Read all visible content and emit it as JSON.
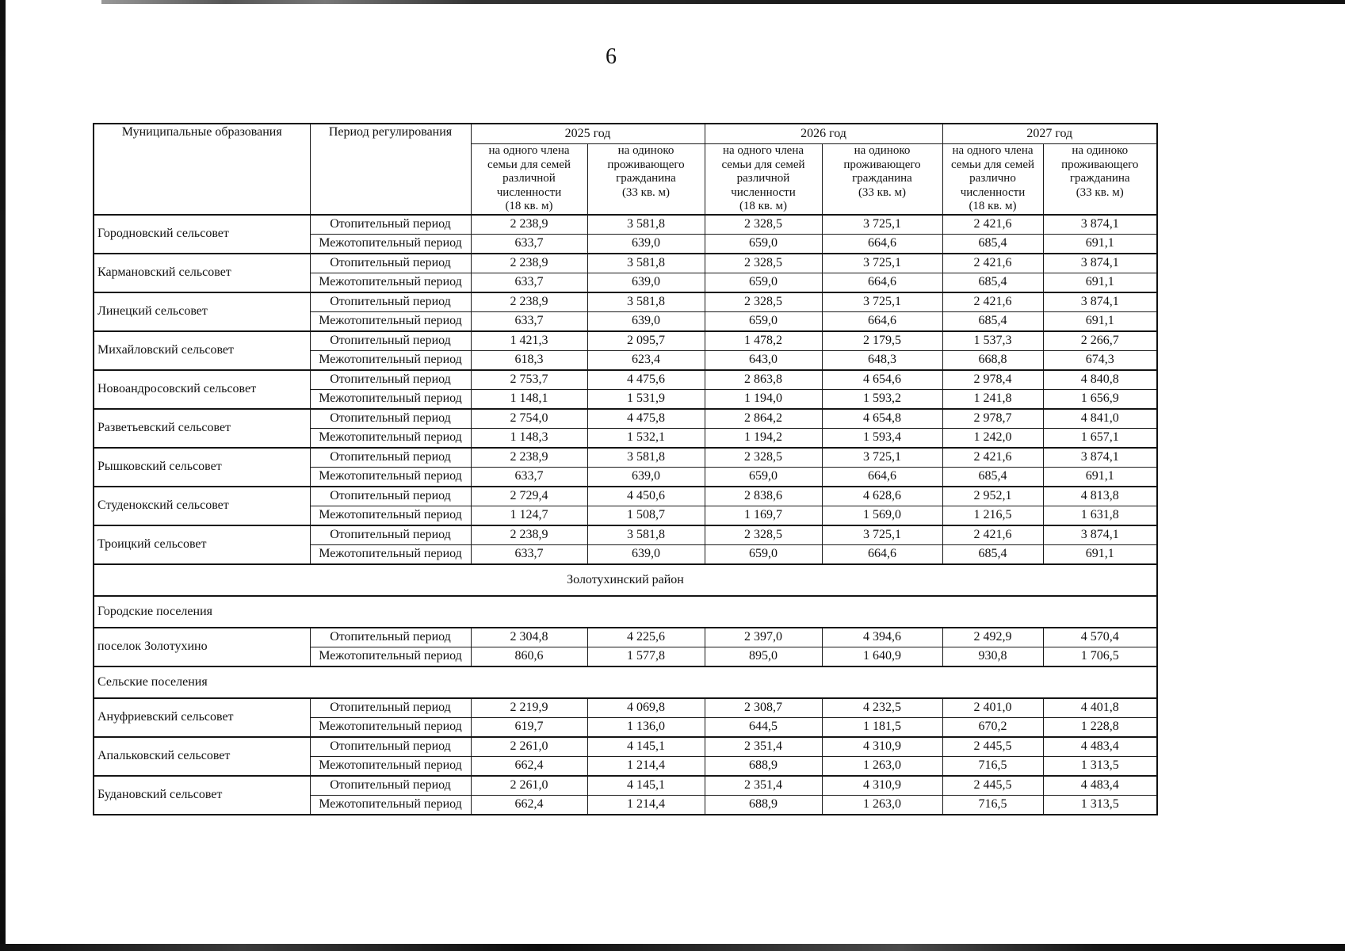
{
  "page": {
    "number": "6"
  },
  "table": {
    "headers": {
      "municipality": "Муниципальные образования",
      "period": "Период регулирования"
    },
    "years": [
      {
        "label": "2025 год",
        "sub_member": "на одного члена\nсемьи для семей\nразличной\nчисленности\n(18 кв. м)",
        "sub_single": "на одиноко\nпроживающего\nгражданина\n(33 кв. м)"
      },
      {
        "label": "2026 год",
        "sub_member": "на одного члена\nсемьи для семей\nразличной\nчисленности\n(18 кв. м)",
        "sub_single": "на одиноко\nпроживающего\nгражданина\n(33 кв. м)"
      },
      {
        "label": "2027 год",
        "sub_member": "на одного члена\nсемьи для семей\nразлично\nчисленности\n(18 кв. м)",
        "sub_single": "на одиноко\nпроживающего\nгражданина\n(33 кв. м)"
      }
    ],
    "period_labels": {
      "heating": "Отопительный период",
      "interheating": "Межотопительный период"
    },
    "rows": [
      {
        "type": "municipality",
        "name": "Городновский сельсовет",
        "heating": [
          "2 238,9",
          "3 581,8",
          "2 328,5",
          "3 725,1",
          "2 421,6",
          "3 874,1"
        ],
        "interheating": [
          "633,7",
          "639,0",
          "659,0",
          "664,6",
          "685,4",
          "691,1"
        ]
      },
      {
        "type": "municipality",
        "name": "Кармановский сельсовет",
        "heating": [
          "2 238,9",
          "3 581,8",
          "2 328,5",
          "3 725,1",
          "2 421,6",
          "3 874,1"
        ],
        "interheating": [
          "633,7",
          "639,0",
          "659,0",
          "664,6",
          "685,4",
          "691,1"
        ]
      },
      {
        "type": "municipality",
        "name": "Линецкий сельсовет",
        "heating": [
          "2 238,9",
          "3 581,8",
          "2 328,5",
          "3 725,1",
          "2 421,6",
          "3 874,1"
        ],
        "interheating": [
          "633,7",
          "639,0",
          "659,0",
          "664,6",
          "685,4",
          "691,1"
        ]
      },
      {
        "type": "municipality",
        "name": "Михайловский сельсовет",
        "heating": [
          "1 421,3",
          "2 095,7",
          "1 478,2",
          "2 179,5",
          "1 537,3",
          "2 266,7"
        ],
        "interheating": [
          "618,3",
          "623,4",
          "643,0",
          "648,3",
          "668,8",
          "674,3"
        ]
      },
      {
        "type": "municipality",
        "name": "Новоандросовский сельсовет",
        "heating": [
          "2 753,7",
          "4 475,6",
          "2 863,8",
          "4 654,6",
          "2 978,4",
          "4 840,8"
        ],
        "interheating": [
          "1 148,1",
          "1 531,9",
          "1 194,0",
          "1 593,2",
          "1 241,8",
          "1 656,9"
        ]
      },
      {
        "type": "municipality",
        "name": "Разветьевский сельсовет",
        "heating": [
          "2 754,0",
          "4 475,8",
          "2 864,2",
          "4 654,8",
          "2 978,7",
          "4 841,0"
        ],
        "interheating": [
          "1 148,3",
          "1 532,1",
          "1 194,2",
          "1 593,4",
          "1 242,0",
          "1 657,1"
        ]
      },
      {
        "type": "municipality",
        "name": "Рышковский сельсовет",
        "heating": [
          "2 238,9",
          "3 581,8",
          "2 328,5",
          "3 725,1",
          "2 421,6",
          "3 874,1"
        ],
        "interheating": [
          "633,7",
          "639,0",
          "659,0",
          "664,6",
          "685,4",
          "691,1"
        ]
      },
      {
        "type": "municipality",
        "name": "Студенокский сельсовет",
        "heating": [
          "2 729,4",
          "4 450,6",
          "2 838,6",
          "4 628,6",
          "2 952,1",
          "4 813,8"
        ],
        "interheating": [
          "1 124,7",
          "1 508,7",
          "1 169,7",
          "1 569,0",
          "1 216,5",
          "1 631,8"
        ]
      },
      {
        "type": "municipality",
        "name": "Троицкий сельсовет",
        "heating": [
          "2 238,9",
          "3 581,8",
          "2 328,5",
          "3 725,1",
          "2 421,6",
          "3 874,1"
        ],
        "interheating": [
          "633,7",
          "639,0",
          "659,0",
          "664,6",
          "685,4",
          "691,1"
        ]
      },
      {
        "type": "section",
        "align": "center",
        "name": "Золотухинский район"
      },
      {
        "type": "section",
        "align": "left",
        "name": "Городские поселения"
      },
      {
        "type": "municipality",
        "name": "поселок Золотухино",
        "heating": [
          "2 304,8",
          "4 225,6",
          "2 397,0",
          "4 394,6",
          "2 492,9",
          "4 570,4"
        ],
        "interheating": [
          "860,6",
          "1 577,8",
          "895,0",
          "1 640,9",
          "930,8",
          "1 706,5"
        ]
      },
      {
        "type": "section",
        "align": "left",
        "name": "Сельские поселения"
      },
      {
        "type": "municipality",
        "name": "Ануфриевский сельсовет",
        "heating": [
          "2 219,9",
          "4 069,8",
          "2 308,7",
          "4 232,5",
          "2 401,0",
          "4 401,8"
        ],
        "interheating": [
          "619,7",
          "1 136,0",
          "644,5",
          "1 181,5",
          "670,2",
          "1 228,8"
        ]
      },
      {
        "type": "municipality",
        "name": "Апальковский сельсовет",
        "heating": [
          "2 261,0",
          "4 145,1",
          "2 351,4",
          "4 310,9",
          "2 445,5",
          "4 483,4"
        ],
        "interheating": [
          "662,4",
          "1 214,4",
          "688,9",
          "1 263,0",
          "716,5",
          "1 313,5"
        ]
      },
      {
        "type": "municipality",
        "name": "Будановский сельсовет",
        "heating": [
          "2 261,0",
          "4 145,1",
          "2 351,4",
          "4 310,9",
          "2 445,5",
          "4 483,4"
        ],
        "interheating": [
          "662,4",
          "1 214,4",
          "688,9",
          "1 263,0",
          "716,5",
          "1 313,5"
        ]
      }
    ]
  }
}
